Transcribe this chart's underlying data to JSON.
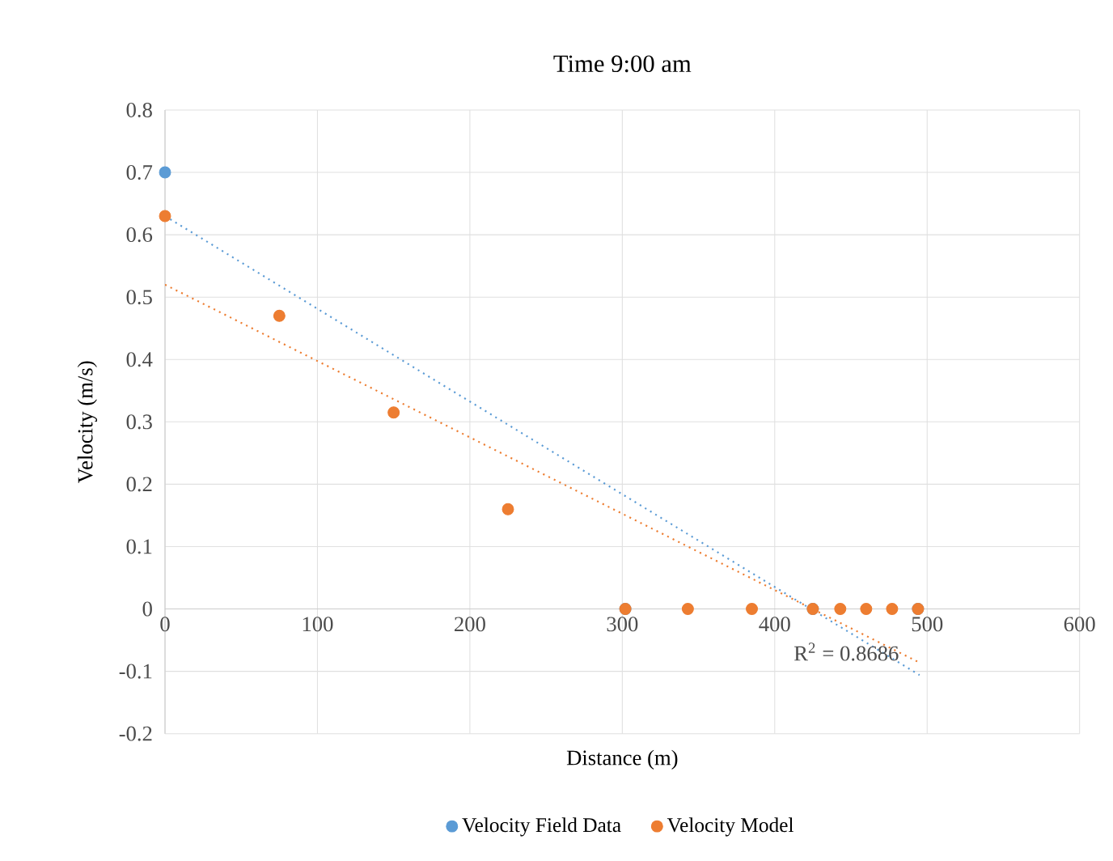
{
  "chart_data": {
    "type": "scatter",
    "title": "Time 9:00 am",
    "xlabel": "Distance (m)",
    "ylabel": "Velocity (m/s)",
    "xlim": [
      0,
      600
    ],
    "xticks": [
      0,
      100,
      200,
      300,
      400,
      500,
      600
    ],
    "ylim": [
      -0.2,
      0.8
    ],
    "yticks": [
      -0.2,
      -0.1,
      0,
      0.1,
      0.2,
      0.3,
      0.4,
      0.5,
      0.6,
      0.7,
      0.8
    ],
    "grid": true,
    "legend": "bottom",
    "marker": "circle",
    "annotations": [
      "R$^{2}$ = 0.8686"
    ],
    "series": [
      {
        "name": "Velocity Field Data",
        "color": "#5b9bd5",
        "x": [
          0,
          302,
          425,
          494
        ],
        "values": [
          0.7,
          0,
          0,
          0
        ]
      },
      {
        "name": "Velocity Model",
        "color": "#ed7d31",
        "x": [
          0,
          75,
          150,
          225,
          302,
          343,
          385,
          425,
          443,
          460,
          477,
          494
        ],
        "values": [
          0.63,
          0.47,
          0.315,
          0.16,
          0,
          0,
          0,
          0,
          0,
          0,
          0,
          0
        ]
      },
      {
        "type": "line",
        "color": "#5b9bd5",
        "line_style": "dotted",
        "marker": "none",
        "x": [
          0,
          495
        ],
        "values": [
          0.63,
          -0.106
        ]
      },
      {
        "type": "line",
        "color": "#ed7d31",
        "line_style": "dotted",
        "marker": "none",
        "x": [
          0,
          495
        ],
        "values": [
          0.52,
          -0.086
        ]
      }
    ]
  }
}
